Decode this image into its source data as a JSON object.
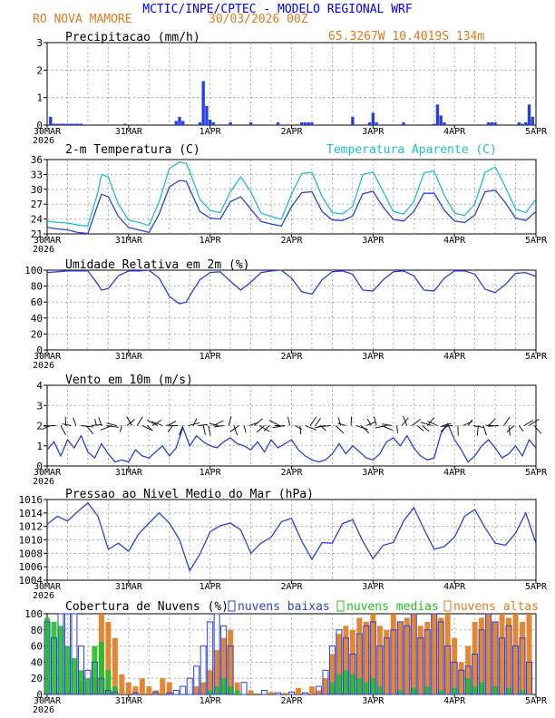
{
  "header": {
    "title": "MCTIC/INPE/CPTEC - MODELO REGIONAL WRF",
    "location": "RO NOVA MAMORE",
    "run": "30/03/2026 00Z",
    "coords": "65.3267W 10.4019S 134m"
  },
  "colors": {
    "title": "#0000ff",
    "orange": "#e07a1e",
    "blue_line": "#2a3fe0",
    "cyan_line": "#1ec0c8",
    "black": "#000000",
    "green": "#20c020",
    "bar_blue": "#2a3fe0"
  },
  "time_axis": {
    "labels": [
      "30MAR",
      "31MAR",
      "1APR",
      "2APR",
      "3APR",
      "4APR",
      "5APR"
    ],
    "year": "2026",
    "hours_total": 144
  },
  "chart_data": [
    {
      "id": "precip",
      "type": "bar",
      "title": "Precipitacao (mm/h)",
      "ylim": [
        0,
        3
      ],
      "yticks": [
        "0",
        "1",
        "2",
        "3"
      ],
      "x": [
        1,
        2,
        3,
        4,
        5,
        6,
        7,
        8,
        9,
        10,
        23,
        38,
        39,
        40,
        45,
        46,
        47,
        48,
        49,
        54,
        60,
        68,
        75,
        76,
        77,
        78,
        90,
        95,
        96,
        97,
        105,
        114,
        115,
        116,
        117,
        130,
        131,
        132,
        139,
        140,
        141,
        142,
        143
      ],
      "values": [
        0.3,
        0.05,
        0.05,
        0.05,
        0.05,
        0.05,
        0.05,
        0.05,
        0.05,
        0.05,
        0.05,
        0.15,
        0.3,
        0.15,
        0.1,
        1.6,
        0.7,
        0.2,
        0.1,
        0.1,
        0.1,
        0.1,
        0.1,
        0.1,
        0.1,
        0.1,
        0.3,
        0.1,
        0.45,
        0.1,
        0.1,
        0.05,
        0.75,
        0.35,
        0.1,
        0.1,
        0.1,
        0.1,
        0.1,
        0.05,
        0.1,
        0.75,
        0.3
      ]
    },
    {
      "id": "temperature",
      "type": "line",
      "title": "2-m Temperatura (C)",
      "legend": "Temperatura Aparente (C)",
      "ylim": [
        21,
        36
      ],
      "yticks": [
        "21",
        "24",
        "27",
        "30",
        "33",
        "36"
      ],
      "series": [
        {
          "name": "Temperatura (C)",
          "x": [
            0,
            3,
            6,
            9,
            12,
            15,
            16,
            18,
            21,
            24,
            27,
            30,
            33,
            36,
            39,
            41,
            42,
            45,
            48,
            51,
            54,
            57,
            60,
            63,
            66,
            69,
            72,
            75,
            78,
            81,
            84,
            87,
            90,
            93,
            96,
            99,
            102,
            105,
            108,
            111,
            114,
            117,
            120,
            123,
            126,
            129,
            132,
            135,
            138,
            141,
            144
          ],
          "values": [
            22.3,
            22,
            21.8,
            21.3,
            21.1,
            27,
            29,
            28.5,
            24.5,
            22.3,
            21.8,
            21.3,
            25,
            30.5,
            31.8,
            31.6,
            30,
            25.5,
            24.2,
            24,
            27.5,
            28.5,
            26,
            23.5,
            23,
            22.6,
            26.5,
            29.3,
            29.5,
            25.5,
            23.8,
            23.7,
            24.6,
            29.1,
            29.6,
            26.4,
            23.9,
            23.6,
            25.5,
            29.2,
            29.2,
            25.8,
            23.6,
            23.3,
            24.8,
            29.5,
            29.8,
            27.3,
            24.2,
            23.7,
            25.5
          ]
        },
        {
          "name": "Temperatura Aparente (C)",
          "x": [
            0,
            3,
            6,
            9,
            12,
            15,
            16,
            18,
            21,
            24,
            27,
            30,
            33,
            36,
            39,
            41,
            42,
            45,
            48,
            51,
            54,
            57,
            60,
            63,
            66,
            69,
            72,
            75,
            78,
            81,
            84,
            87,
            90,
            93,
            96,
            99,
            102,
            105,
            108,
            111,
            114,
            117,
            120,
            123,
            126,
            129,
            132,
            135,
            138,
            141,
            144
          ],
          "values": [
            23.6,
            23.3,
            23.2,
            22.8,
            22.6,
            29.5,
            33,
            32.5,
            27,
            23.8,
            23.3,
            22.7,
            27.5,
            34.2,
            35.5,
            35.2,
            33.6,
            28,
            25.7,
            25.3,
            29.5,
            32.5,
            29.5,
            25.2,
            24.5,
            24,
            29,
            33.2,
            33.4,
            28.5,
            25.3,
            25,
            26.5,
            33,
            33.5,
            29.5,
            25.5,
            25,
            27.5,
            33.3,
            33.7,
            28.8,
            25.2,
            24.7,
            27,
            33.4,
            34.5,
            30.5,
            26,
            25.3,
            28
          ]
        }
      ]
    },
    {
      "id": "humidity",
      "type": "line",
      "title": "Umidade Relativa em 2m (%)",
      "ylim": [
        0,
        100
      ],
      "yticks": [
        "0",
        "20",
        "40",
        "60",
        "80",
        "100"
      ],
      "series": [
        {
          "name": "Umidade Relativa",
          "x": [
            0,
            3,
            6,
            9,
            12,
            15,
            16,
            18,
            21,
            24,
            27,
            30,
            33,
            36,
            39,
            41,
            42,
            45,
            48,
            51,
            54,
            57,
            60,
            63,
            66,
            69,
            72,
            75,
            78,
            81,
            84,
            87,
            90,
            93,
            96,
            99,
            102,
            105,
            108,
            111,
            114,
            117,
            120,
            123,
            126,
            129,
            132,
            135,
            138,
            141,
            144
          ],
          "values": [
            97,
            98,
            99,
            99,
            99,
            82,
            75,
            77,
            93,
            99,
            99,
            100,
            90,
            67,
            58,
            60,
            68,
            88,
            97,
            98,
            86,
            75,
            85,
            97,
            99,
            100,
            90,
            73,
            70,
            88,
            98,
            99,
            95,
            75,
            74,
            88,
            98,
            99,
            93,
            75,
            74,
            90,
            99,
            99,
            95,
            76,
            72,
            82,
            96,
            97,
            92
          ]
        }
      ]
    },
    {
      "id": "wind",
      "type": "line",
      "title": "Vento em 10m (m/s)",
      "ylim": [
        0,
        4
      ],
      "yticks": [
        "0",
        "1",
        "2",
        "3",
        "4"
      ],
      "series": [
        {
          "name": "Velocidade do vento",
          "x": [
            0,
            2,
            4,
            6,
            8,
            10,
            12,
            14,
            16,
            18,
            20,
            22,
            24,
            26,
            28,
            30,
            32,
            34,
            36,
            38,
            40,
            42,
            44,
            46,
            48,
            50,
            52,
            54,
            56,
            58,
            60,
            62,
            64,
            66,
            68,
            70,
            72,
            74,
            76,
            78,
            80,
            82,
            84,
            86,
            88,
            90,
            92,
            94,
            96,
            98,
            100,
            102,
            104,
            106,
            108,
            110,
            112,
            114,
            116,
            118,
            120,
            122,
            124,
            126,
            128,
            130,
            132,
            134,
            136,
            138,
            140,
            142,
            144
          ],
          "values": [
            0.8,
            1.2,
            0.5,
            1.3,
            0.9,
            1.5,
            0.7,
            0.4,
            1.1,
            0.6,
            0.2,
            0.3,
            0.2,
            0.8,
            0.5,
            0.4,
            0.7,
            1.0,
            0.5,
            0.9,
            1.9,
            1.0,
            1.5,
            1.2,
            1.0,
            0.9,
            1.2,
            1.4,
            1.1,
            1.0,
            0.8,
            1.2,
            0.7,
            1.3,
            0.9,
            1.1,
            1.3,
            0.8,
            0.5,
            0.3,
            0.2,
            0.3,
            0.6,
            1.1,
            0.6,
            1.0,
            0.7,
            0.4,
            0.3,
            0.6,
            1.2,
            1.4,
            1.0,
            1.5,
            0.9,
            0.5,
            0.3,
            0.4,
            1.6,
            2.1,
            1.3,
            0.8,
            0.2,
            0.5,
            1.0,
            1.3,
            0.9,
            0.4,
            0.6,
            1.0,
            0.5,
            1.3,
            0.9
          ]
        }
      ]
    },
    {
      "id": "pressure",
      "type": "line",
      "title": "Pressao ao Nivel Medio do Mar (hPa)",
      "ylim": [
        1004,
        1016
      ],
      "yticks": [
        "1004",
        "1006",
        "1008",
        "1010",
        "1012",
        "1014",
        "1016"
      ],
      "series": [
        {
          "name": "Pressao",
          "x": [
            0,
            3,
            6,
            9,
            12,
            15,
            18,
            21,
            24,
            27,
            30,
            33,
            36,
            39,
            42,
            45,
            48,
            51,
            54,
            57,
            60,
            63,
            66,
            69,
            72,
            75,
            78,
            81,
            84,
            87,
            90,
            93,
            96,
            99,
            102,
            105,
            108,
            111,
            114,
            117,
            120,
            123,
            126,
            129,
            132,
            135,
            138,
            141,
            144
          ],
          "values": [
            1012.3,
            1013.5,
            1012.8,
            1014.2,
            1015.5,
            1013.5,
            1008.6,
            1009.5,
            1008.3,
            1010.9,
            1012.5,
            1014,
            1012.5,
            1010,
            1005.4,
            1007.9,
            1011.2,
            1012.1,
            1012.5,
            1011.5,
            1008,
            1009.5,
            1010.4,
            1012.7,
            1013.2,
            1009.8,
            1007.1,
            1009.6,
            1009.5,
            1012.4,
            1013,
            1009.8,
            1007.2,
            1009.2,
            1009.6,
            1012.8,
            1014.8,
            1011.6,
            1008.6,
            1009,
            1010.4,
            1013.5,
            1014.5,
            1011.8,
            1009.5,
            1009.2,
            1011,
            1014,
            1009.5
          ]
        }
      ]
    },
    {
      "id": "clouds",
      "type": "bar",
      "title": "Cobertura de Nuvens (%)",
      "legend": [
        "nuvens baixas",
        "nuvens medias",
        "nuvens altas"
      ],
      "ylim": [
        0,
        100
      ],
      "yticks": [
        "0",
        "20",
        "40",
        "60",
        "80",
        "100"
      ],
      "series": [
        {
          "name": "nuvens altas",
          "x": [
            0,
            3,
            6,
            10,
            14,
            16,
            18,
            20,
            22,
            24,
            26,
            28,
            30,
            32,
            34,
            36,
            44,
            46,
            48,
            50,
            52,
            54,
            56,
            60,
            66,
            70,
            74,
            78,
            80,
            82,
            84,
            86,
            88,
            90,
            92,
            94,
            96,
            98,
            100,
            102,
            104,
            106,
            108,
            110,
            112,
            114,
            116,
            118,
            120,
            122,
            124,
            126,
            128,
            130,
            132,
            134,
            136,
            138,
            140,
            142
          ],
          "values": [
            3,
            2,
            5,
            15,
            20,
            100,
            90,
            70,
            25,
            15,
            10,
            20,
            10,
            5,
            20,
            15,
            10,
            15,
            30,
            55,
            70,
            80,
            15,
            5,
            3,
            2,
            8,
            10,
            5,
            20,
            50,
            75,
            85,
            80,
            95,
            90,
            100,
            85,
            80,
            100,
            90,
            95,
            100,
            85,
            90,
            100,
            95,
            100,
            70,
            40,
            60,
            90,
            95,
            100,
            90,
            100,
            95,
            100,
            90,
            100
          ]
        },
        {
          "name": "nuvens medias",
          "x": [
            0,
            2,
            4,
            6,
            8,
            10,
            12,
            14,
            16,
            18,
            20,
            48,
            50,
            52,
            54,
            56,
            84,
            86,
            88,
            90,
            92,
            94,
            96,
            98,
            104,
            108,
            112,
            116,
            120,
            124,
            126,
            128,
            132,
            136,
            140
          ],
          "values": [
            95,
            90,
            85,
            60,
            45,
            30,
            20,
            60,
            65,
            30,
            10,
            5,
            10,
            20,
            10,
            5,
            15,
            25,
            30,
            25,
            20,
            15,
            20,
            10,
            5,
            8,
            10,
            5,
            8,
            20,
            10,
            15,
            10,
            8,
            5
          ]
        },
        {
          "name": "nuvens baixas",
          "x": [
            0,
            2,
            4,
            6,
            8,
            10,
            12,
            14,
            16,
            18,
            20,
            26,
            32,
            36,
            38,
            40,
            42,
            44,
            46,
            48,
            50,
            52,
            54,
            58,
            64,
            68,
            72,
            76,
            80,
            82,
            84,
            86,
            88,
            90,
            92,
            94,
            96,
            98,
            100,
            102,
            104,
            106,
            108,
            110,
            112,
            114,
            116,
            118,
            120,
            122,
            124,
            126,
            128,
            130,
            132,
            134,
            136,
            138,
            140,
            142
          ],
          "values": [
            90,
            70,
            100,
            100,
            100,
            60,
            30,
            40,
            20,
            5,
            3,
            2,
            3,
            2,
            5,
            10,
            20,
            35,
            60,
            90,
            100,
            85,
            60,
            15,
            5,
            2,
            3,
            2,
            10,
            30,
            60,
            80,
            70,
            50,
            75,
            85,
            90,
            60,
            70,
            80,
            90,
            85,
            100,
            70,
            80,
            100,
            90,
            60,
            40,
            30,
            35,
            50,
            80,
            100,
            90,
            70,
            85,
            60,
            70,
            40
          ]
        }
      ]
    }
  ]
}
